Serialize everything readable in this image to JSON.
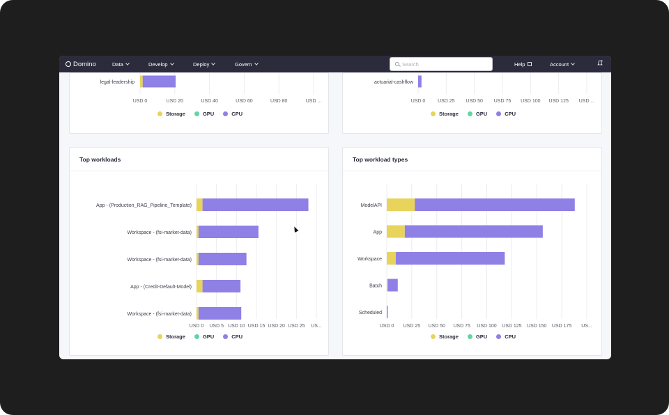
{
  "navbar": {
    "brand": "Domino",
    "items": [
      {
        "label": "Data"
      },
      {
        "label": "Develop"
      },
      {
        "label": "Deploy"
      },
      {
        "label": "Govern"
      }
    ],
    "search_placeholder": "Search",
    "help_label": "Help",
    "account_label": "Account"
  },
  "legend": {
    "storage": "Storage",
    "gpu": "GPU",
    "cpu": "CPU"
  },
  "colors": {
    "storage": "#e8d45a",
    "gpu": "#5fd6a3",
    "cpu": "#8f80e6",
    "nav_bg": "#2b2b3b"
  },
  "cards": {
    "top_left": {
      "title": ""
    },
    "top_right": {
      "title": ""
    },
    "workloads": {
      "title": "Top workloads"
    },
    "workload_types": {
      "title": "Top workload types"
    }
  },
  "chart_data": [
    {
      "type": "bar",
      "orientation": "horizontal",
      "stacked": true,
      "categories": [
        "legal-leadership"
      ],
      "series": [
        {
          "name": "Storage",
          "values": [
            1.5
          ]
        },
        {
          "name": "GPU",
          "values": [
            0
          ]
        },
        {
          "name": "CPU",
          "values": [
            19
          ]
        }
      ],
      "xticks": [
        "USD 0",
        "USD 20",
        "USD 40",
        "USD 60",
        "USD 80",
        "USD ..."
      ],
      "xlim": [
        0,
        100
      ]
    },
    {
      "type": "bar",
      "orientation": "horizontal",
      "stacked": true,
      "categories": [
        "actuarial-cashflow"
      ],
      "series": [
        {
          "name": "Storage",
          "values": [
            0
          ]
        },
        {
          "name": "GPU",
          "values": [
            0
          ]
        },
        {
          "name": "CPU",
          "values": [
            3
          ]
        }
      ],
      "xticks": [
        "USD 0",
        "USD 25",
        "USD 50",
        "USD 75",
        "USD 100",
        "USD 125",
        "USD ..."
      ],
      "xlim": [
        0,
        150
      ]
    },
    {
      "title": "Top workloads",
      "type": "bar",
      "orientation": "horizontal",
      "stacked": true,
      "categories": [
        "App - (Production_RAG_Pipeline_Template)",
        "Workspace - (fsi-market-data)",
        "Workspace - (fsi-market-data)",
        "App - (Credit-Default-Model)",
        "Workspace - (fsi-market-data)"
      ],
      "series": [
        {
          "name": "Storage",
          "values": [
            1.5,
            0.5,
            0.5,
            1.5,
            0.5
          ]
        },
        {
          "name": "GPU",
          "values": [
            0,
            0,
            0,
            0,
            0
          ]
        },
        {
          "name": "CPU",
          "values": [
            26.5,
            15,
            12,
            9.5,
            10.7
          ]
        }
      ],
      "xticks": [
        "USD 0",
        "USD 5",
        "USD 10",
        "USD 15",
        "USD 20",
        "USD 25",
        "US..."
      ],
      "xlim": [
        0,
        30
      ]
    },
    {
      "title": "Top workload types",
      "type": "bar",
      "orientation": "horizontal",
      "stacked": true,
      "categories": [
        "ModelAPI",
        "App",
        "Workspace",
        "Batch",
        "Scheduled"
      ],
      "series": [
        {
          "name": "Storage",
          "values": [
            28,
            18,
            9,
            1,
            0
          ]
        },
        {
          "name": "GPU",
          "values": [
            0,
            0,
            0,
            0,
            0
          ]
        },
        {
          "name": "CPU",
          "values": [
            160,
            138,
            109,
            10,
            1
          ]
        }
      ],
      "xticks": [
        "USD 0",
        "USD 25",
        "USD 50",
        "USD 75",
        "USD 100",
        "USD 125",
        "USD 150",
        "USD 175",
        "US..."
      ],
      "xlim": [
        0,
        200
      ]
    }
  ]
}
